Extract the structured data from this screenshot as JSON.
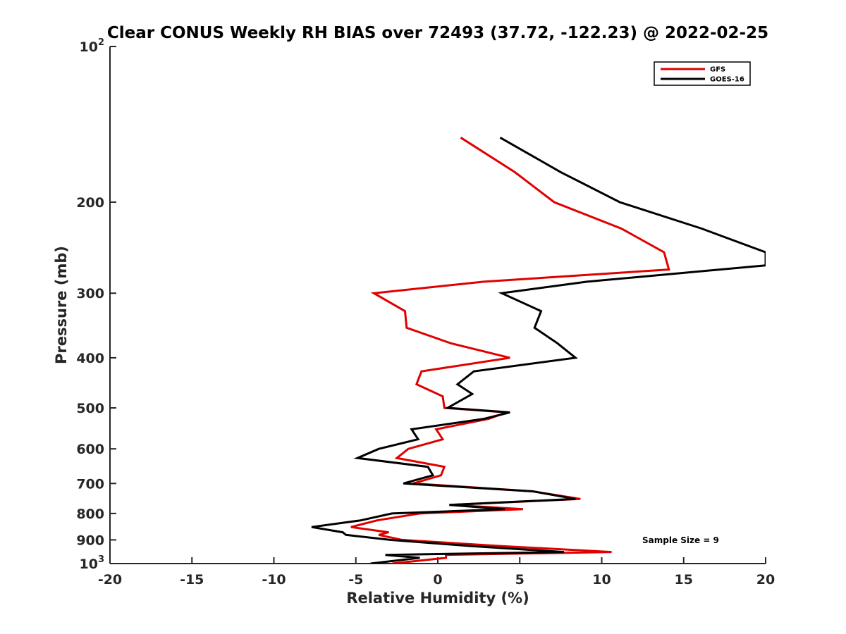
{
  "chart_data": {
    "type": "line",
    "title": "Clear CONUS Weekly RH BIAS over 72493 (37.72, -122.23) @ 2022-02-25",
    "xlabel": "Relative Humidity (%)",
    "ylabel": "Pressure (mb)",
    "xlim": [
      -20,
      20
    ],
    "ylim": [
      100,
      1000
    ],
    "y_scale": "log",
    "y_reversed": true,
    "grid": false,
    "x_ticks": [
      -20,
      -15,
      -10,
      -5,
      0,
      5,
      10,
      15,
      20
    ],
    "x_tick_labels": [
      "-20",
      "-15",
      "-10",
      "-5",
      "0",
      "5",
      "10",
      "15",
      "20"
    ],
    "y_ticks": [
      {
        "value": 100,
        "base": "10",
        "sup": "2"
      },
      {
        "value": 200,
        "label": "200"
      },
      {
        "value": 300,
        "label": "300"
      },
      {
        "value": 400,
        "label": "400"
      },
      {
        "value": 500,
        "label": "500"
      },
      {
        "value": 600,
        "label": "600"
      },
      {
        "value": 700,
        "label": "700"
      },
      {
        "value": 800,
        "label": "800"
      },
      {
        "value": 900,
        "label": "900"
      },
      {
        "value": 1000,
        "base": "10",
        "sup": "3"
      }
    ],
    "legend_position": "top-right",
    "annotation": "Sample Size = 9",
    "series": [
      {
        "name": "GFS",
        "color": "#e00000",
        "points": [
          [
            1.4,
            150
          ],
          [
            4.7,
            175
          ],
          [
            7.1,
            200
          ],
          [
            11.2,
            225
          ],
          [
            13.8,
            250
          ],
          [
            14.1,
            270
          ],
          [
            2.8,
            285
          ],
          [
            -3.9,
            300
          ],
          [
            -2.0,
            325
          ],
          [
            -1.9,
            350
          ],
          [
            0.8,
            375
          ],
          [
            4.4,
            400
          ],
          [
            -1.0,
            425
          ],
          [
            -1.3,
            450
          ],
          [
            0.3,
            475
          ],
          [
            0.4,
            500
          ],
          [
            4.2,
            510
          ],
          [
            3.1,
            525
          ],
          [
            -0.1,
            550
          ],
          [
            0.3,
            575
          ],
          [
            -1.8,
            600
          ],
          [
            -2.5,
            625
          ],
          [
            0.4,
            650
          ],
          [
            0.2,
            675
          ],
          [
            -1.5,
            700
          ],
          [
            5.8,
            725
          ],
          [
            8.7,
            750
          ],
          [
            0.8,
            770
          ],
          [
            5.2,
            785
          ],
          [
            -1.1,
            800
          ],
          [
            -3.7,
            825
          ],
          [
            -5.3,
            850
          ],
          [
            -3.0,
            870
          ],
          [
            -3.6,
            880
          ],
          [
            -2.2,
            900
          ],
          [
            3.8,
            925
          ],
          [
            10.6,
            950
          ],
          [
            0.5,
            962
          ],
          [
            0.5,
            975
          ],
          [
            -2.8,
            1000
          ]
        ]
      },
      {
        "name": "GOES-16",
        "color": "#000000",
        "points": [
          [
            3.8,
            150
          ],
          [
            7.5,
            175
          ],
          [
            11.1,
            200
          ],
          [
            16.1,
            225
          ],
          [
            20.0,
            250
          ],
          [
            20.0,
            265
          ],
          [
            9.1,
            285
          ],
          [
            3.9,
            300
          ],
          [
            6.3,
            325
          ],
          [
            5.9,
            350
          ],
          [
            7.3,
            375
          ],
          [
            8.4,
            400
          ],
          [
            2.2,
            425
          ],
          [
            1.2,
            450
          ],
          [
            2.1,
            470
          ],
          [
            0.6,
            500
          ],
          [
            4.4,
            510
          ],
          [
            2.8,
            525
          ],
          [
            -1.6,
            550
          ],
          [
            -1.2,
            575
          ],
          [
            -3.6,
            600
          ],
          [
            -4.9,
            625
          ],
          [
            -0.6,
            650
          ],
          [
            -0.3,
            675
          ],
          [
            -2.1,
            700
          ],
          [
            5.8,
            725
          ],
          [
            8.4,
            750
          ],
          [
            0.7,
            770
          ],
          [
            4.1,
            785
          ],
          [
            -2.8,
            800
          ],
          [
            -4.7,
            825
          ],
          [
            -7.7,
            850
          ],
          [
            -5.8,
            870
          ],
          [
            -5.6,
            880
          ],
          [
            -2.9,
            900
          ],
          [
            2.0,
            925
          ],
          [
            7.7,
            950
          ],
          [
            -3.2,
            962
          ],
          [
            -1.1,
            975
          ],
          [
            -4.1,
            1000
          ]
        ]
      }
    ]
  }
}
